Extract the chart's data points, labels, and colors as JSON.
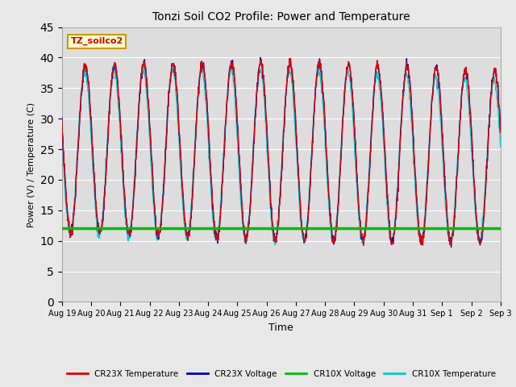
{
  "title": "Tonzi Soil CO2 Profile: Power and Temperature",
  "xlabel": "Time",
  "ylabel": "Power (V) / Temperature (C)",
  "ylim": [
    0,
    45
  ],
  "yticks": [
    0,
    5,
    10,
    15,
    20,
    25,
    30,
    35,
    40,
    45
  ],
  "x_labels": [
    "Aug 19",
    "Aug 20",
    "Aug 21",
    "Aug 22",
    "Aug 23",
    "Aug 24",
    "Aug 25",
    "Aug 26",
    "Aug 27",
    "Aug 28",
    "Aug 29",
    "Aug 30",
    "Aug 31",
    "Sep 1",
    "Sep 2",
    "Sep 3"
  ],
  "cr23x_temp_color": "#dd0000",
  "cr23x_volt_color": "#0000bb",
  "cr10x_volt_color": "#00bb00",
  "cr10x_temp_color": "#00cccc",
  "cr10x_volt_value": 12.0,
  "fig_facecolor": "#e8e8e8",
  "plot_bg_color": "#dddddd",
  "annotation_text": "TZ_soilco2",
  "annotation_bg": "#ffffcc",
  "annotation_border": "#cc9900",
  "legend_entries": [
    "CR23X Temperature",
    "CR23X Voltage",
    "CR10X Voltage",
    "CR10X Temperature"
  ],
  "legend_colors": [
    "#dd0000",
    "#0000bb",
    "#00bb00",
    "#00cccc"
  ],
  "n_days": 15,
  "pts_per_day": 96
}
